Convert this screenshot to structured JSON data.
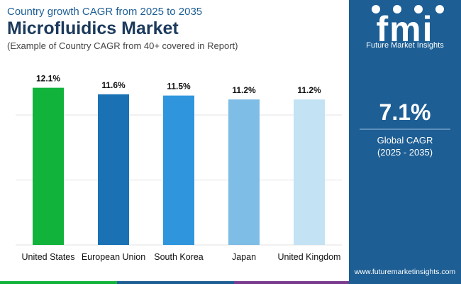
{
  "header": {
    "title": "Country growth CAGR from 2025 to 2035",
    "heading": "Microfluidics Market",
    "subtitle": "(Example of Country CAGR from 40+ covered in Report)"
  },
  "chart_data": {
    "type": "bar",
    "categories": [
      "United States",
      "European Union",
      "South Korea",
      "Japan",
      "United Kingdom"
    ],
    "values": [
      12.1,
      11.6,
      11.5,
      11.2,
      11.2
    ],
    "value_labels": [
      "12.1%",
      "11.6%",
      "11.5%",
      "11.2%",
      "11.2%"
    ],
    "colors": [
      "#12b33b",
      "#1a72b5",
      "#2f96dd",
      "#7ebde5",
      "#c3e2f4"
    ],
    "ylim": [
      0,
      13.5
    ],
    "yticks": [
      5,
      10
    ],
    "grid": true
  },
  "sidebar": {
    "logo": "fmi",
    "brand": "Future Market Insights",
    "value": "7.1%",
    "label": "Global CAGR",
    "period": "(2025 - 2035)"
  },
  "footer": {
    "url": "www.futuremarketinsights.com"
  }
}
